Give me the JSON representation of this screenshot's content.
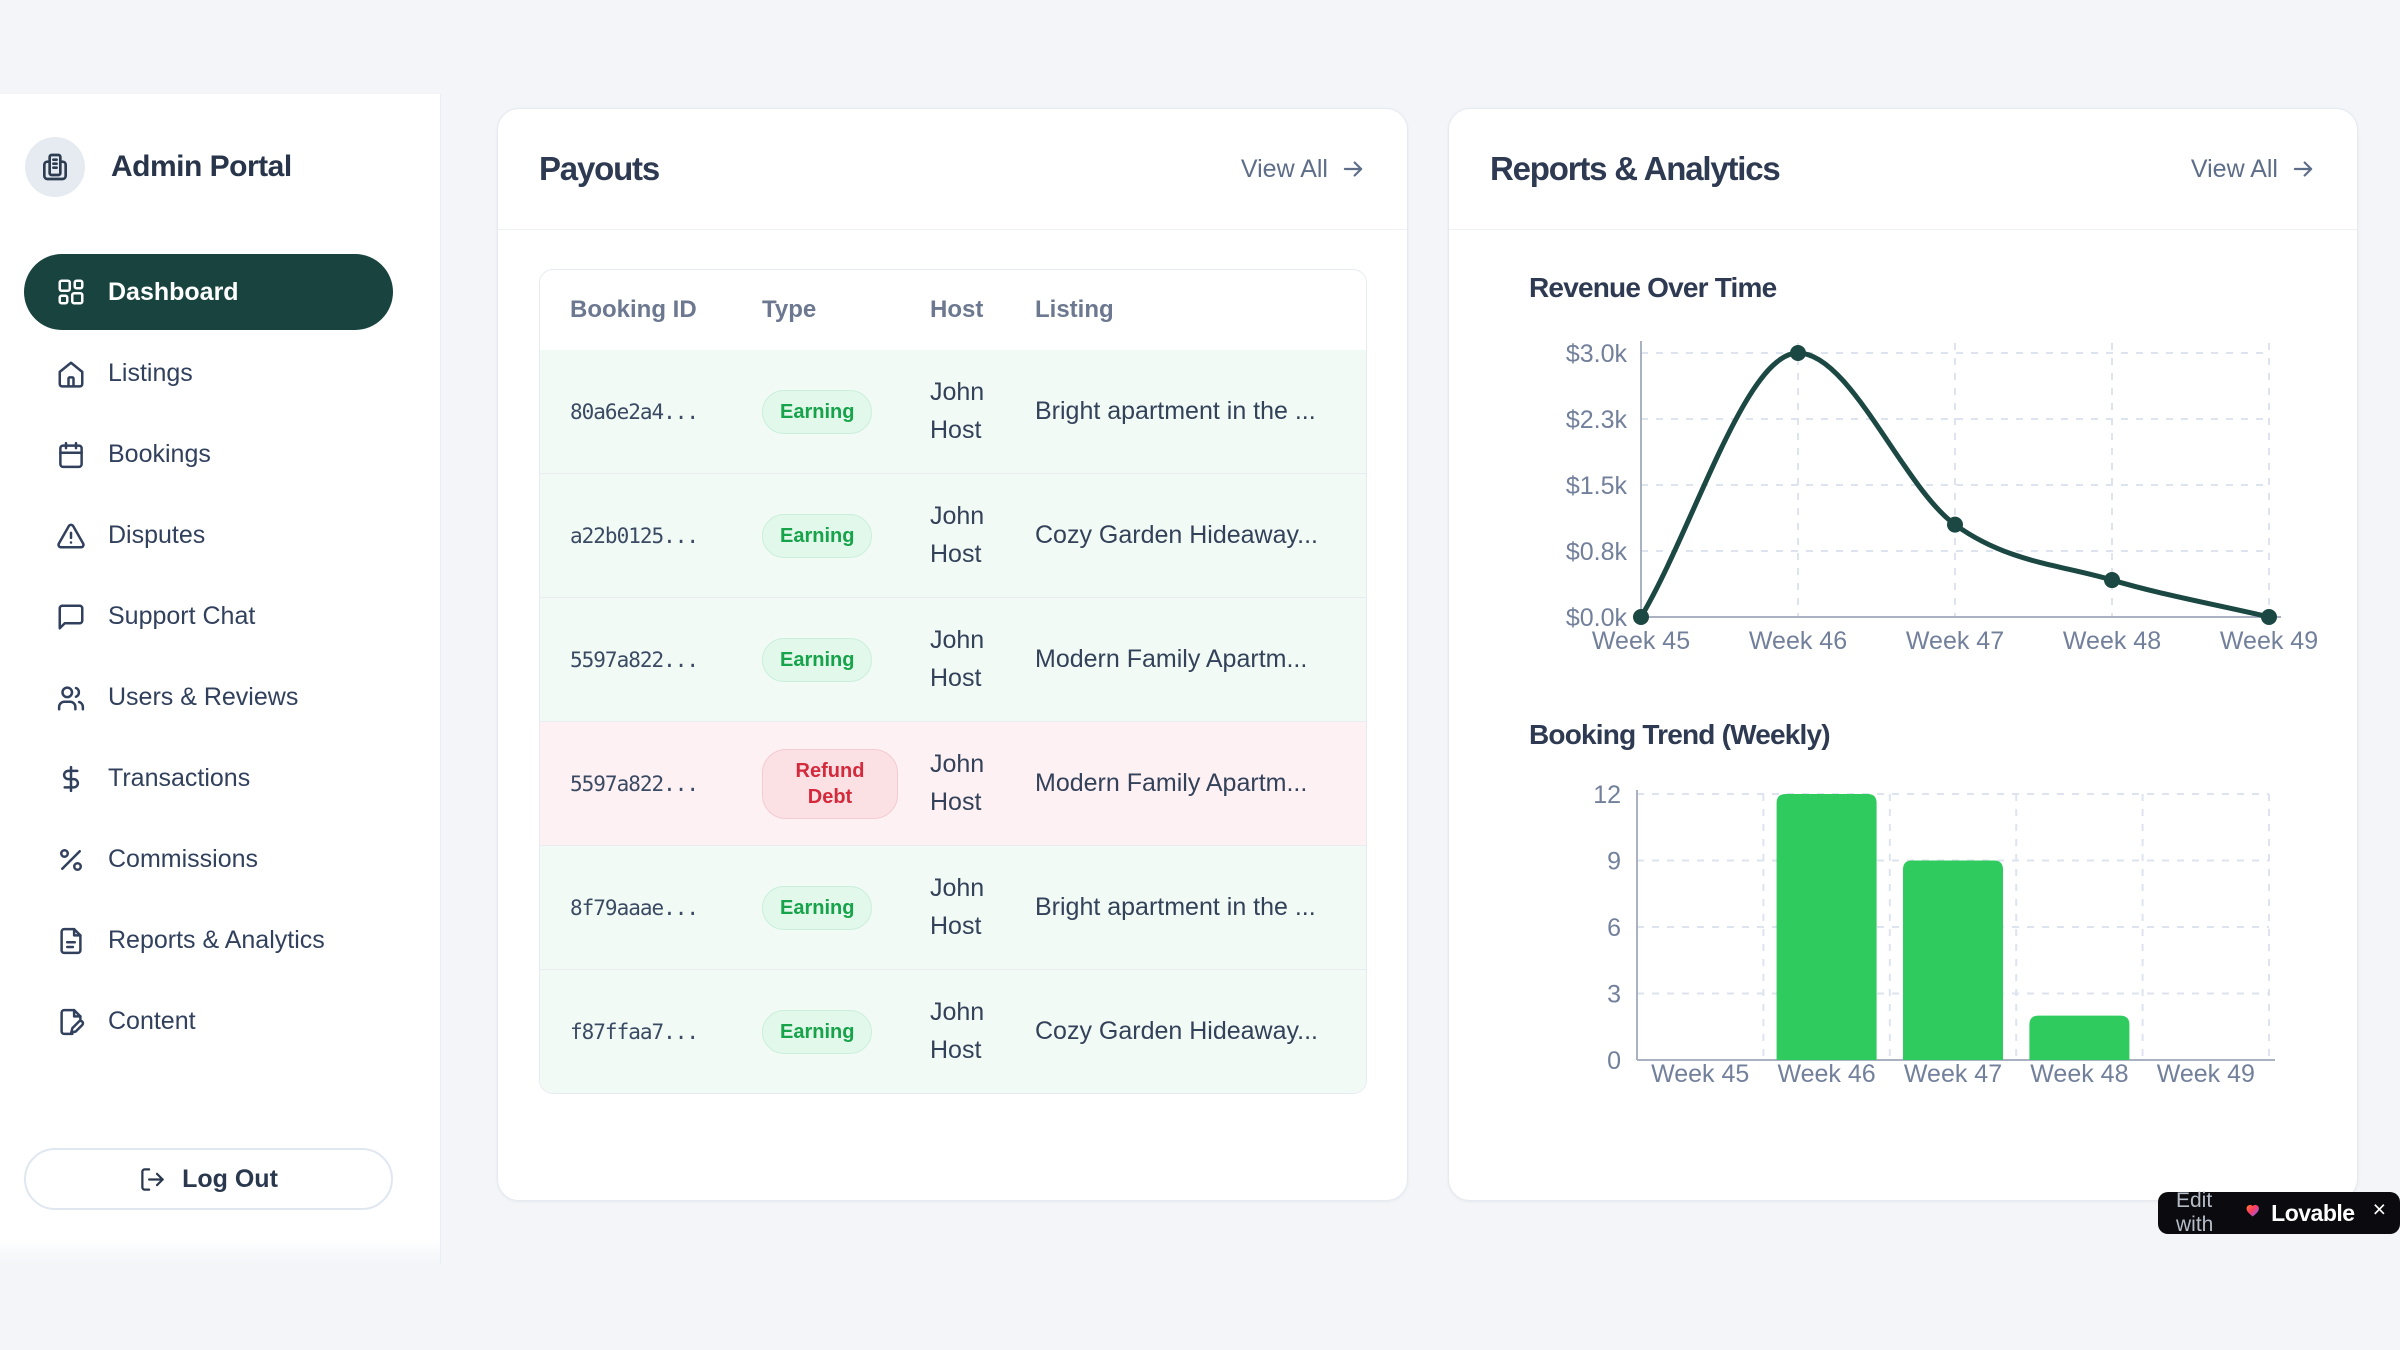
{
  "sidebar": {
    "brand": {
      "title": "Admin Portal",
      "icon": "building-icon"
    },
    "items": [
      {
        "label": "Dashboard",
        "icon": "dashboard-grid-icon",
        "active": true
      },
      {
        "label": "Listings",
        "icon": "home-icon",
        "active": false
      },
      {
        "label": "Bookings",
        "icon": "calendar-icon",
        "active": false
      },
      {
        "label": "Disputes",
        "icon": "alert-triangle-icon",
        "active": false
      },
      {
        "label": "Support Chat",
        "icon": "chat-bubble-icon",
        "active": false
      },
      {
        "label": "Users & Reviews",
        "icon": "users-icon",
        "active": false
      },
      {
        "label": "Transactions",
        "icon": "dollar-icon",
        "active": false
      },
      {
        "label": "Commissions",
        "icon": "percent-icon",
        "active": false
      },
      {
        "label": "Reports & Analytics",
        "icon": "file-text-icon",
        "active": false
      },
      {
        "label": "Content",
        "icon": "file-pen-icon",
        "active": false
      }
    ],
    "logout_label": "Log Out"
  },
  "payouts": {
    "title": "Payouts",
    "view_all_label": "View All",
    "columns": [
      "Booking ID",
      "Type",
      "Host",
      "Listing"
    ],
    "rows": [
      {
        "booking_id": "80a6e2a4...",
        "type": "Earning",
        "status": "earning",
        "host": "John Host",
        "listing": "Bright apartment in the ..."
      },
      {
        "booking_id": "a22b0125...",
        "type": "Earning",
        "status": "earning",
        "host": "John Host",
        "listing": "Cozy Garden Hideaway..."
      },
      {
        "booking_id": "5597a822...",
        "type": "Earning",
        "status": "earning",
        "host": "John Host",
        "listing": "Modern Family Apartm..."
      },
      {
        "booking_id": "5597a822...",
        "type": "Refund Debt",
        "status": "refund",
        "host": "John Host",
        "listing": "Modern Family Apartm..."
      },
      {
        "booking_id": "8f79aaae...",
        "type": "Earning",
        "status": "earning",
        "host": "John Host",
        "listing": "Bright apartment in the ..."
      },
      {
        "booking_id": "f87ffaa7...",
        "type": "Earning",
        "status": "earning",
        "host": "John Host",
        "listing": "Cozy Garden Hideaway..."
      }
    ]
  },
  "reports": {
    "title": "Reports & Analytics",
    "view_all_label": "View All"
  },
  "chart_data": [
    {
      "type": "line",
      "title": "Revenue Over Time",
      "x": [
        "Week 45",
        "Week 46",
        "Week 47",
        "Week 48",
        "Week 49"
      ],
      "values": [
        0,
        3000,
        1050,
        420,
        0
      ],
      "y_ticks": [
        {
          "label": "$0.0k",
          "value": 0
        },
        {
          "label": "$0.8k",
          "value": 750
        },
        {
          "label": "$1.5k",
          "value": 1500
        },
        {
          "label": "$2.3k",
          "value": 2250
        },
        {
          "label": "$3.0k",
          "value": 3000
        }
      ],
      "xlabel": "",
      "ylabel": "",
      "ylim": [
        0,
        3000
      ],
      "grid": true,
      "legend": false,
      "line_color": "#1c4843"
    },
    {
      "type": "bar",
      "title": "Booking Trend (Weekly)",
      "categories": [
        "Week 45",
        "Week 46",
        "Week 47",
        "Week 48",
        "Week 49"
      ],
      "values": [
        0,
        12,
        9,
        2,
        0
      ],
      "y_ticks": [
        {
          "label": "0",
          "value": 0
        },
        {
          "label": "3",
          "value": 3
        },
        {
          "label": "6",
          "value": 6
        },
        {
          "label": "9",
          "value": 9
        },
        {
          "label": "12",
          "value": 12
        }
      ],
      "xlabel": "",
      "ylabel": "",
      "ylim": [
        0,
        12
      ],
      "grid": true,
      "legend": false,
      "bar_color": "#2fcb5e"
    }
  ],
  "lovable_badge": {
    "prefix": "Edit with",
    "brand": "Lovable",
    "close_label": "×"
  },
  "colors": {
    "page_bg": "#f3f5f8",
    "accent_dark_teal": "#18433e",
    "badge_green_text": "#16a34a",
    "badge_red_text": "#d42a3c",
    "bar_green": "#2fcb5e",
    "line_teal": "#1c4843"
  }
}
